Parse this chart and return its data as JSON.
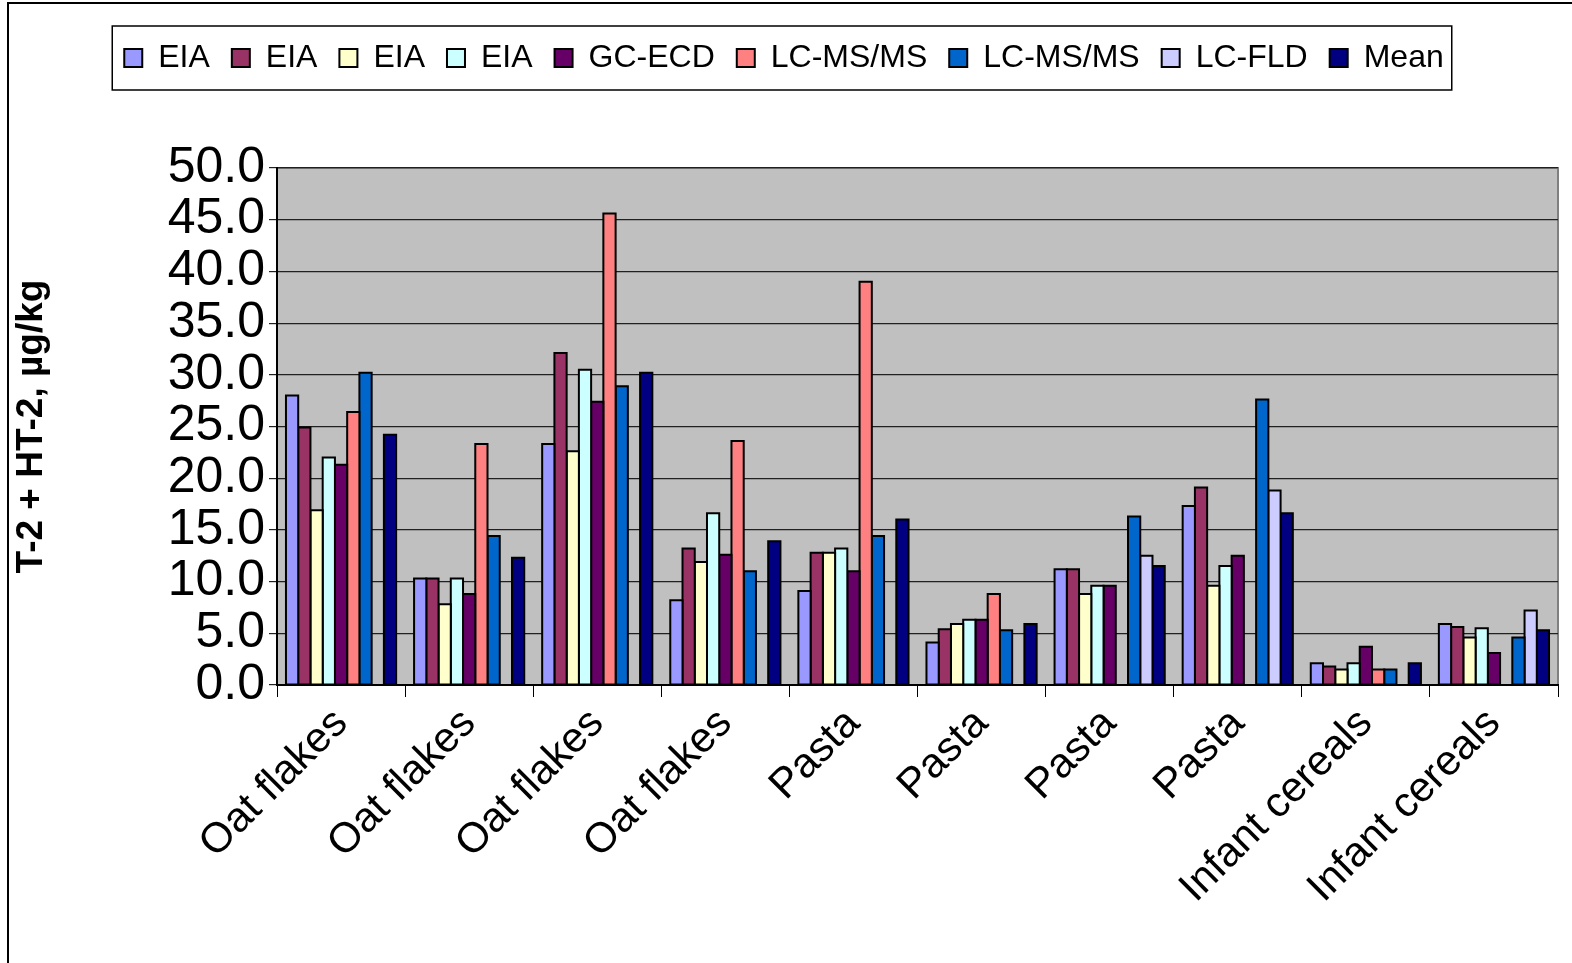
{
  "chart_data": {
    "type": "bar",
    "ylabel": "T-2 + HT-2, µg/kg",
    "categories": [
      "Oat flakes",
      "Oat flakes",
      "Oat flakes",
      "Oat flakes",
      "Pasta",
      "Pasta",
      "Pasta",
      "Pasta",
      "Infant cereals",
      "Infant cereals"
    ],
    "series": [
      {
        "name": "EIA",
        "color": "#9999ff",
        "values": [
          28.0,
          10.3,
          23.3,
          8.2,
          9.1,
          4.1,
          11.2,
          17.3,
          2.1,
          5.9
        ]
      },
      {
        "name": "EIA",
        "color": "#993366",
        "values": [
          24.9,
          10.3,
          32.1,
          13.2,
          12.8,
          5.4,
          11.2,
          19.1,
          1.8,
          5.6
        ]
      },
      {
        "name": "EIA",
        "color": "#ffffcc",
        "values": [
          16.9,
          7.8,
          22.6,
          11.9,
          12.8,
          5.9,
          8.8,
          9.6,
          1.5,
          4.6
        ]
      },
      {
        "name": "EIA",
        "color": "#ccffff",
        "values": [
          22.0,
          10.3,
          30.5,
          16.6,
          13.2,
          6.3,
          9.6,
          11.5,
          2.1,
          5.5
        ]
      },
      {
        "name": "GC-ECD",
        "color": "#660066",
        "values": [
          21.3,
          8.8,
          27.4,
          12.6,
          11.0,
          6.3,
          9.6,
          12.5,
          3.7,
          3.1
        ]
      },
      {
        "name": "LC-MS/MS",
        "color": "#ff8080",
        "values": [
          26.4,
          23.3,
          45.6,
          23.6,
          39.0,
          8.8,
          null,
          null,
          1.5,
          null
        ]
      },
      {
        "name": "LC-MS/MS",
        "color": "#0066cc",
        "values": [
          30.2,
          14.4,
          28.9,
          11.0,
          14.4,
          5.3,
          16.3,
          27.6,
          1.5,
          4.6
        ]
      },
      {
        "name": "LC-FLD",
        "color": "#ccccff",
        "values": [
          null,
          null,
          null,
          null,
          null,
          null,
          12.5,
          18.8,
          null,
          7.2
        ]
      },
      {
        "name": "Mean",
        "color": "#000080",
        "values": [
          24.2,
          12.3,
          30.2,
          13.9,
          16.0,
          5.9,
          11.5,
          16.6,
          2.1,
          5.3
        ]
      }
    ],
    "ylim": [
      0,
      50
    ],
    "yticks": [
      {
        "value": 0,
        "label": "0.0"
      },
      {
        "value": 5,
        "label": "5.0"
      },
      {
        "value": 10,
        "label": "10.0"
      },
      {
        "value": 15,
        "label": "15.0"
      },
      {
        "value": 20,
        "label": "20.0"
      },
      {
        "value": 25,
        "label": "25.0"
      },
      {
        "value": 30,
        "label": "30.0"
      },
      {
        "value": 35,
        "label": "35.0"
      },
      {
        "value": 40,
        "label": "40.0"
      },
      {
        "value": 45,
        "label": "45.0"
      },
      {
        "value": 50,
        "label": "50.0"
      }
    ],
    "grid": "y",
    "legend": "top"
  }
}
